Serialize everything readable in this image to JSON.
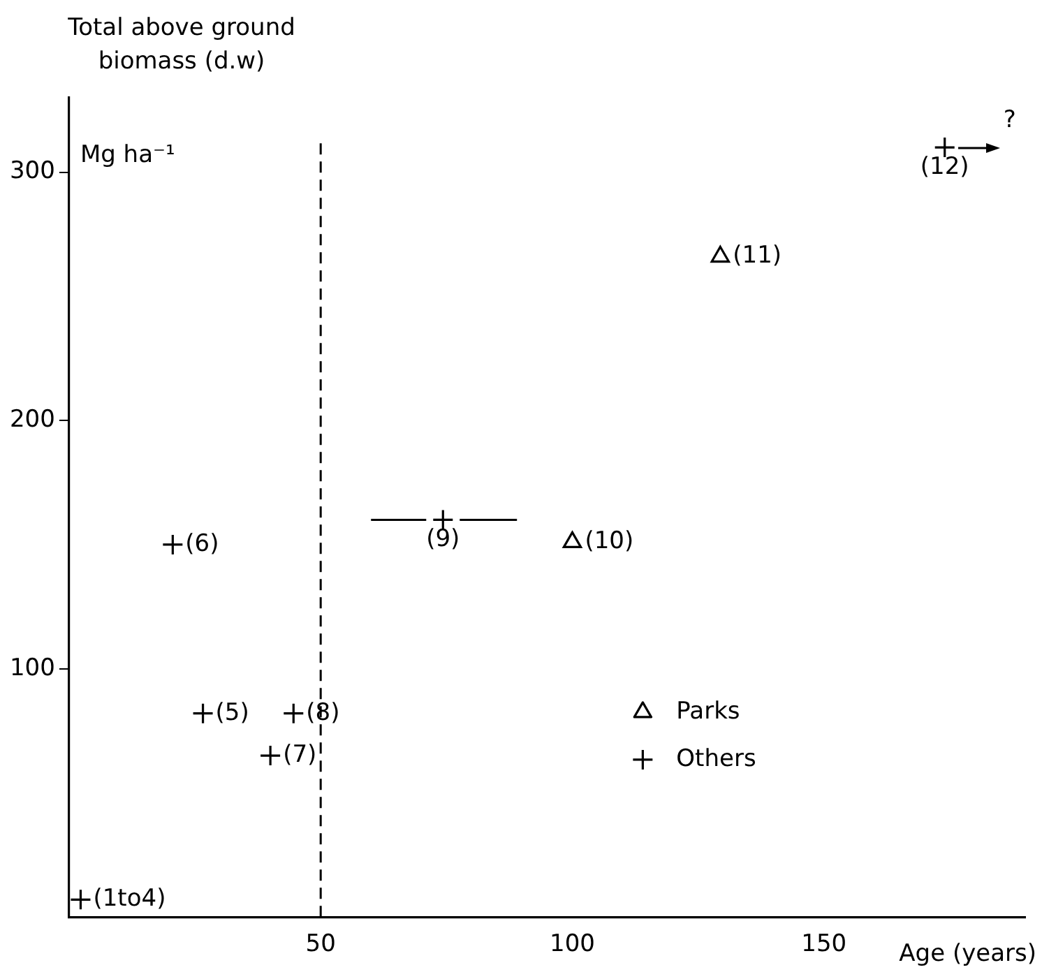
{
  "chart_data": {
    "type": "scatter",
    "xlabel": "Age (years)",
    "ylabel": "Total above ground biomass (d.w)",
    "series": [
      {
        "name": "Parks",
        "color": "#000000",
        "marker": "triangle",
        "x": [
          100,
          129.4
        ],
        "values": [
          151,
          266
        ]
      },
      {
        "name": "Others",
        "color": "#000000",
        "marker": "cross",
        "x": [
          2.3,
          26.6,
          20.6,
          40,
          44.6,
          74.3,
          174
        ],
        "values": [
          7,
          82,
          150,
          65,
          82,
          160,
          310
        ],
        "xerrors": [
          null,
          null,
          null,
          null,
          null,
          [
            60,
            89
          ],
          null
        ]
      }
    ],
    "xlim": [
      0,
      190
    ],
    "xticks": [
      50,
      100,
      150
    ],
    "ylim": [
      0,
      330
    ],
    "yticks": [
      100,
      200,
      300
    ],
    "ref_lines": [
      {
        "axis": "x",
        "value": 50,
        "color": "#000000",
        "line_style": "dashed"
      }
    ],
    "annotations": [
      "Mg ha⁻¹",
      {
        "text": "(1to4)",
        "x": 2.3,
        "y": 7
      },
      {
        "text": "(5)",
        "x": 26.6,
        "y": 82
      },
      {
        "text": "(6)",
        "x": 20.6,
        "y": 150
      },
      {
        "text": "(7)",
        "x": 40,
        "y": 65
      },
      {
        "text": "(8)",
        "x": 44.6,
        "y": 82
      },
      {
        "text": "(9)",
        "x": 74.3,
        "y": 160
      },
      {
        "text": "(10)",
        "x": 100,
        "y": 151
      },
      {
        "text": "(11)",
        "x": 129.4,
        "y": 266
      },
      {
        "text": "(12)",
        "x": 174,
        "y": 310
      },
      "?"
    ],
    "legend": "bottom right",
    "grid": false
  }
}
